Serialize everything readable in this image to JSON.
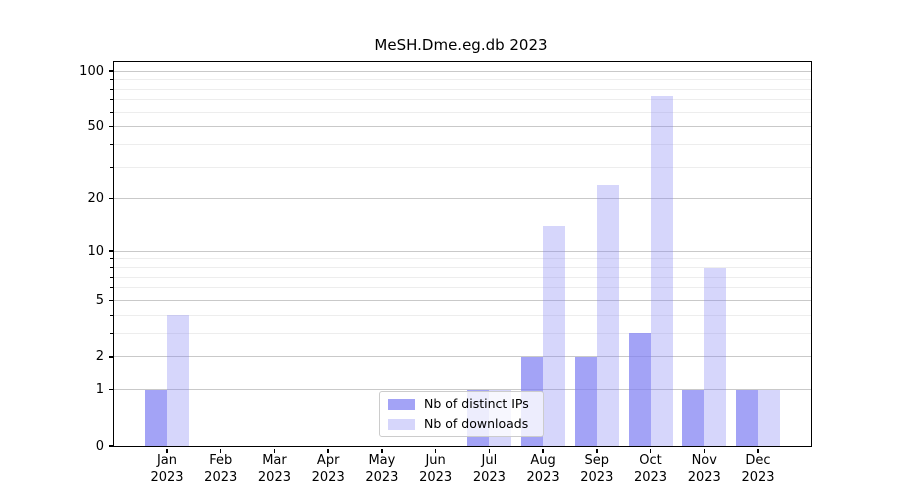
{
  "title": "MeSH.Dme.eg.db 2023",
  "chart_data": {
    "type": "bar",
    "title": "MeSH.Dme.eg.db 2023",
    "categories": [
      "Jan",
      "Feb",
      "Mar",
      "Apr",
      "May",
      "Jun",
      "Jul",
      "Aug",
      "Sep",
      "Oct",
      "Nov",
      "Dec"
    ],
    "category_year": "2023",
    "series": [
      {
        "name": "Nb of distinct IPs",
        "color": "rgba(128,128,242,0.72)",
        "values": [
          1,
          0,
          0,
          0,
          0,
          0,
          1,
          2,
          2,
          3,
          1,
          1
        ]
      },
      {
        "name": "Nb of downloads",
        "color": "rgba(128,128,242,0.32)",
        "values": [
          4,
          0,
          0,
          0,
          0,
          0,
          1,
          14,
          24,
          73,
          8,
          1
        ]
      }
    ],
    "xlabel": "",
    "ylabel": "",
    "y_scale": "log1p",
    "ylim": [
      0,
      112
    ],
    "y_ticks": [
      0,
      1,
      2,
      5,
      10,
      20,
      50,
      100
    ],
    "y_minor_ticks": [
      3,
      4,
      6,
      7,
      8,
      9,
      30,
      40,
      60,
      70,
      80,
      90
    ],
    "grid": "horizontal",
    "legend_position": "lower-center-inside",
    "axis_color": "#000000",
    "major_grid_color": "#c9c9c9",
    "minor_grid_color": "#ededed"
  },
  "legend": {
    "item1": "Nb of distinct IPs",
    "item2": "Nb of downloads"
  }
}
